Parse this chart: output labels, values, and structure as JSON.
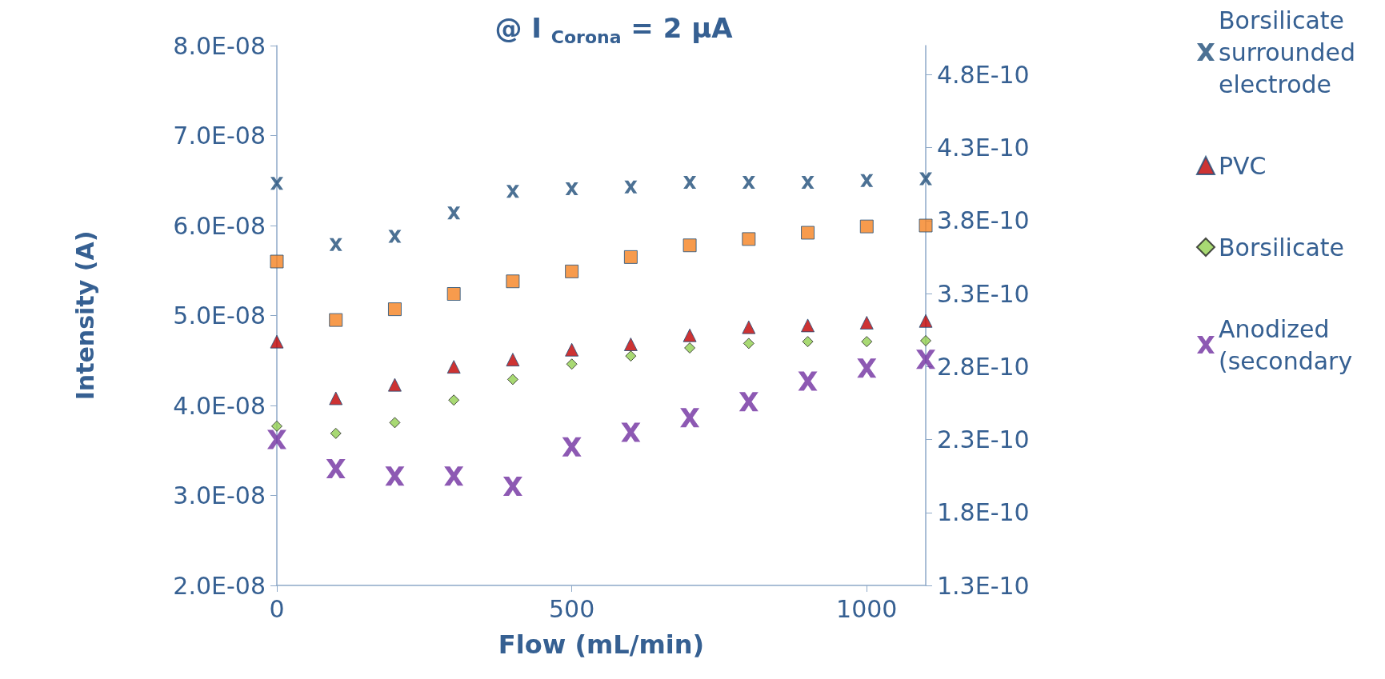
{
  "chart_data": {
    "type": "scatter",
    "title": "@ I $_{Corona}$ = 2 µA",
    "xlabel": "Flow (mL/min)",
    "ylabel": "Intensity (A)",
    "xlim": [
      0,
      1100
    ],
    "xticks": [
      0,
      500,
      1000
    ],
    "ylim": [
      2e-08,
      8e-08
    ],
    "yticks": [
      {
        "value": 2e-08,
        "label": "2.0E-08"
      },
      {
        "value": 3e-08,
        "label": "3.0E-08"
      },
      {
        "value": 4e-08,
        "label": "4.0E-08"
      },
      {
        "value": 5e-08,
        "label": "5.0E-08"
      },
      {
        "value": 6e-08,
        "label": "6.0E-08"
      },
      {
        "value": 7e-08,
        "label": "7.0E-08"
      },
      {
        "value": 8e-08,
        "label": "8.0E-08"
      }
    ],
    "y2lim": [
      1.3e-10,
      5e-10
    ],
    "y2ticks": [
      {
        "value": 1.3e-10,
        "label": "1.3E-10"
      },
      {
        "value": 1.8e-10,
        "label": "1.8E-10"
      },
      {
        "value": 2.3e-10,
        "label": "2.3E-10"
      },
      {
        "value": 2.8e-10,
        "label": "2.8E-10"
      },
      {
        "value": 3.3e-10,
        "label": "3.3E-10"
      },
      {
        "value": 3.8e-10,
        "label": "3.8E-10"
      },
      {
        "value": 4.3e-10,
        "label": "4.3E-10"
      },
      {
        "value": 4.8e-10,
        "label": "4.8E-10"
      }
    ],
    "x": [
      0,
      100,
      200,
      300,
      400,
      500,
      600,
      700,
      800,
      900,
      1000,
      1100
    ],
    "grid": false,
    "legend": "right",
    "series": [
      {
        "name": "Borsilicate\nsurrounded\nelectrode",
        "color": "#1f4e79",
        "marker": "cross",
        "values": [
          6.47e-08,
          5.79e-08,
          5.88e-08,
          6.14e-08,
          6.38e-08,
          6.41e-08,
          6.43e-08,
          6.48e-08,
          6.48e-08,
          6.48e-08,
          6.5e-08,
          6.52e-08
        ]
      },
      {
        "color": "#f58220",
        "marker": "square",
        "values": [
          5.6e-08,
          4.95e-08,
          5.07e-08,
          5.24e-08,
          5.38e-08,
          5.49e-08,
          5.65e-08,
          5.78e-08,
          5.85e-08,
          5.92e-08,
          5.99e-08,
          6e-08
        ]
      },
      {
        "name": "PVC",
        "color": "#c00000",
        "marker": "triangle",
        "values": [
          4.71e-08,
          4.08e-08,
          4.23e-08,
          4.43e-08,
          4.51e-08,
          4.62e-08,
          4.68e-08,
          4.78e-08,
          4.87e-08,
          4.89e-08,
          4.92e-08,
          4.94e-08
        ]
      },
      {
        "name": "Borsilicate",
        "color": "#92d050",
        "marker": "diamond",
        "values": [
          3.77e-08,
          3.69e-08,
          3.81e-08,
          4.06e-08,
          4.29e-08,
          4.46e-08,
          4.55e-08,
          4.64e-08,
          4.69e-08,
          4.71e-08,
          4.71e-08,
          4.72e-08
        ]
      },
      {
        "name": "Anodized\n(secondary",
        "color": "#7030a0",
        "marker": "cross",
        "axis": "y2",
        "values": [
          2.3e-10,
          2.1e-10,
          2.05e-10,
          2.05e-10,
          1.98e-10,
          2.25e-10,
          2.35e-10,
          2.45e-10,
          2.56e-10,
          2.7e-10,
          2.79e-10,
          2.85e-10
        ]
      }
    ]
  }
}
